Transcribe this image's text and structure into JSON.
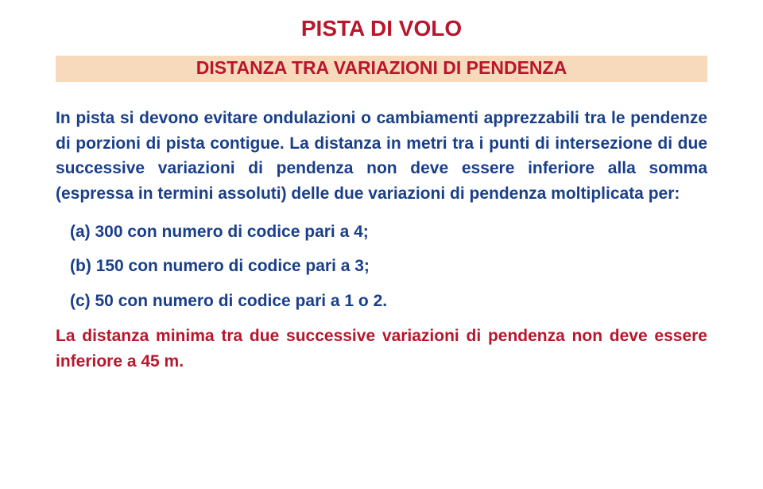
{
  "colors": {
    "title": "#b9162c",
    "subtitle_bg": "#f7d9bb",
    "subtitle_text": "#b9162c",
    "body_text": "#1a3f8a",
    "footer_text": "#b9162c",
    "page_bg": "#ffffff"
  },
  "typography": {
    "title_fontsize": 28,
    "subtitle_fontsize": 23,
    "body_fontsize": 21,
    "font_family": "Arial",
    "weight": "bold"
  },
  "title": "PISTA DI VOLO",
  "subtitle": "DISTANZA TRA VARIAZIONI DI PENDENZA",
  "paragraph": "In pista si devono evitare ondulazioni o cambiamenti apprezzabili tra le pendenze di porzioni di pista contigue. La distanza in metri tra i punti di intersezione di due successive variazioni di pendenza non deve essere inferiore alla somma (espressa in termini assoluti) delle due variazioni di pendenza moltiplicata per:",
  "list": [
    "(a) 300 con numero di codice pari a 4;",
    "(b) 150 con numero di codice pari a 3;",
    "(c)  50 con numero di codice pari a 1 o 2."
  ],
  "footer": "La distanza minima tra due successive variazioni di pendenza non deve essere inferiore a 45 m."
}
